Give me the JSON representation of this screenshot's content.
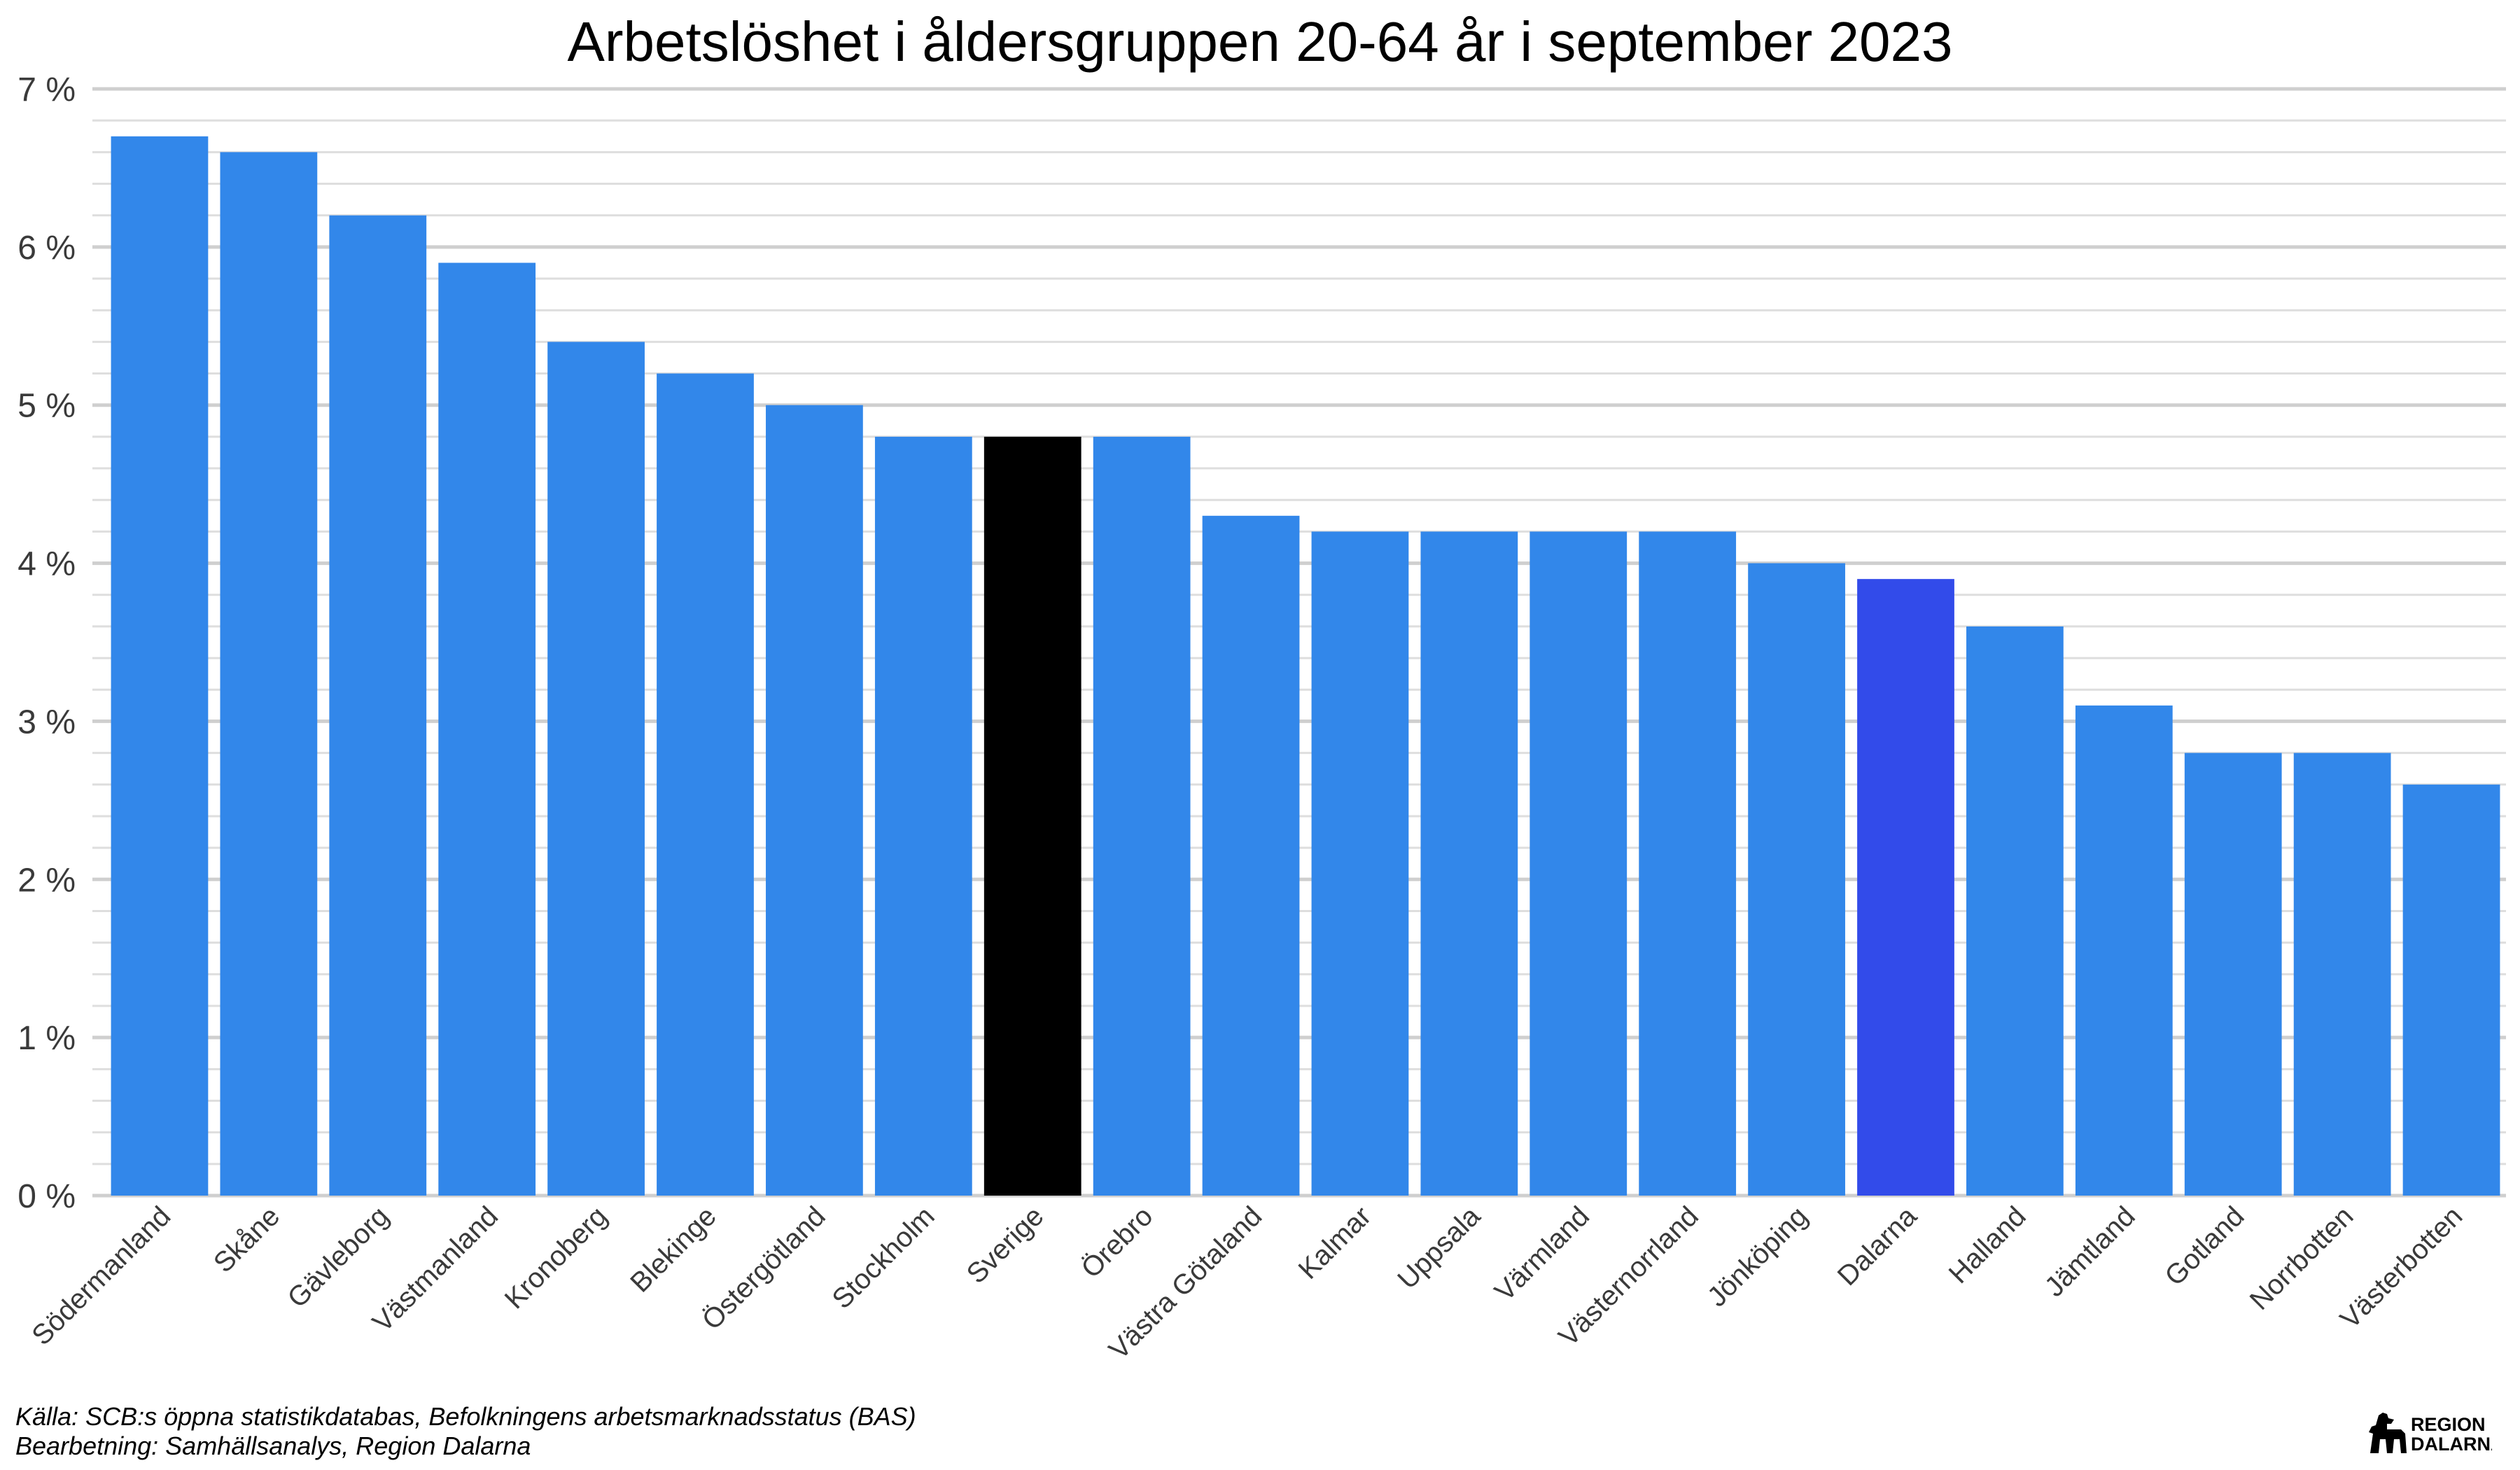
{
  "chart_data": {
    "type": "bar",
    "title": "Arbetslöshet i åldersgruppen 20-64 år i september 2023",
    "xlabel": "",
    "ylabel": "",
    "ylim": [
      0,
      7
    ],
    "y_ticks": [
      "0 %",
      "1 %",
      "2 %",
      "3 %",
      "4 %",
      "5 %",
      "6 %",
      "7 %"
    ],
    "y_tick_values": [
      0,
      1,
      2,
      3,
      4,
      5,
      6,
      7
    ],
    "grid": true,
    "legend": "none",
    "categories": [
      "Södermanland",
      "Skåne",
      "Gävleborg",
      "Västmanland",
      "Kronoberg",
      "Blekinge",
      "Östergötland",
      "Stockholm",
      "Sverige",
      "Örebro",
      "Västra Götaland",
      "Kalmar",
      "Uppsala",
      "Värmland",
      "Västernorrland",
      "Jönköping",
      "Dalarna",
      "Halland",
      "Jämtland",
      "Gotland",
      "Norrbotten",
      "Västerbotten"
    ],
    "values": [
      6.7,
      6.6,
      6.2,
      5.9,
      5.4,
      5.2,
      5.0,
      4.8,
      4.8,
      4.8,
      4.3,
      4.2,
      4.2,
      4.2,
      4.2,
      4.0,
      3.9,
      3.6,
      3.1,
      2.8,
      2.8,
      2.6
    ],
    "colors": {
      "default": "#3287EA",
      "Sverige": "#000000",
      "Dalarna": "#324BEA"
    }
  },
  "footer": {
    "source": "Källa: SCB:s öppna statistikdatabas, Befolkningens arbetsmarknadsstatus (BAS)",
    "processing": "Bearbetning: Samhällsanalys, Region Dalarna"
  },
  "logo": {
    "line1": "REGION",
    "line2": "DALARNA",
    "icon": "dala-horse-icon"
  }
}
